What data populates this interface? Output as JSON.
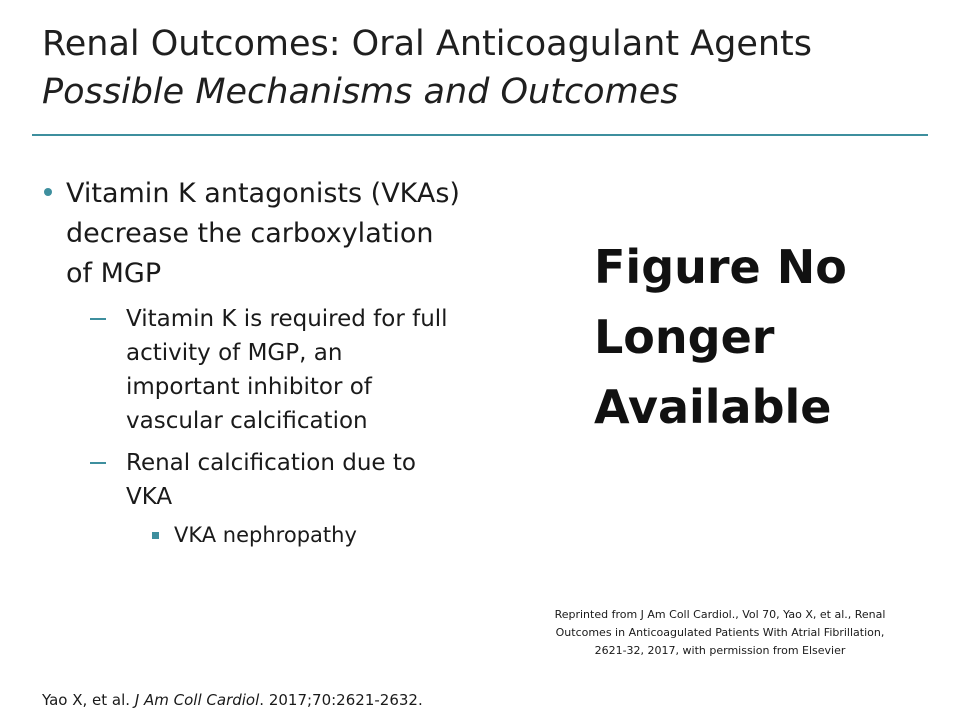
{
  "slide": {
    "title": "Renal Outcomes: Oral Anticoagulant Agents",
    "subtitle": "Possible Mechanisms and Outcomes"
  },
  "bullets": {
    "level1": "Vitamin K antagonists (VKAs) decrease the carboxylation of MGP",
    "level2": [
      "Vitamin K is required for full activity of MGP, an important inhibitor of vascular calcification",
      "Renal calcification due to VKA"
    ],
    "level3": "VKA nephropathy"
  },
  "figure_placeholder": {
    "line1": "Figure No",
    "line2": "Longer",
    "line3": "Available"
  },
  "credit": {
    "line1": "Reprinted from J Am Coll Cardiol., Vol 70, Yao X, et al., Renal",
    "line2": "Outcomes in Anticoagulated Patients With Atrial Fibrillation,",
    "line3": "2621-32, 2017, with permission from Elsevier"
  },
  "citation": {
    "authors": "Yao X, et al. ",
    "journal": "J Am Coll Cardiol",
    "details": ". 2017;70:2621-2632."
  },
  "colors": {
    "accent": "#3e8f9e",
    "text": "#1a1a1a",
    "background": "#ffffff"
  }
}
